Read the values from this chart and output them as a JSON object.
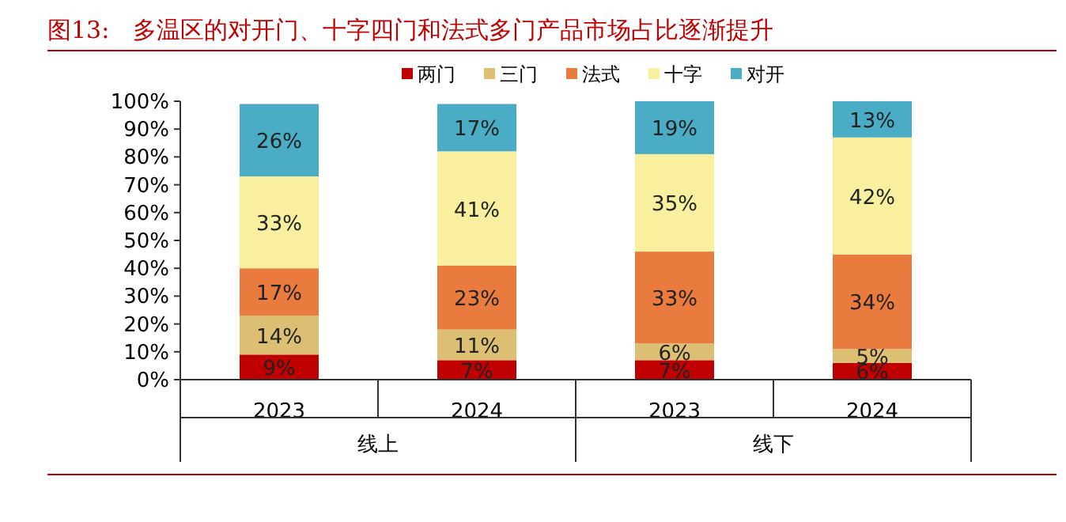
{
  "chart_data": {
    "type": "bar",
    "stacked": true,
    "title": "图13:　多温区的对开门、十字四门和法式多门产品市场占比逐渐提升",
    "categories": [
      "2023",
      "2024",
      "2023",
      "2024"
    ],
    "annotations": [
      "线上",
      "线下"
    ],
    "ylim": [
      0,
      100
    ],
    "yticks": [
      {
        "value": 0,
        "label": "0%"
      },
      {
        "value": 10,
        "label": "10%"
      },
      {
        "value": 20,
        "label": "20%"
      },
      {
        "value": 30,
        "label": "30%"
      },
      {
        "value": 40,
        "label": "40%"
      },
      {
        "value": 50,
        "label": "50%"
      },
      {
        "value": 60,
        "label": "60%"
      },
      {
        "value": 70,
        "label": "70%"
      },
      {
        "value": 80,
        "label": "80%"
      },
      {
        "value": 90,
        "label": "90%"
      },
      {
        "value": 100,
        "label": "100%"
      }
    ],
    "legend": "top",
    "grid": false,
    "series": [
      {
        "name": "两门",
        "color": "#c00000",
        "values": [
          9,
          7,
          7,
          6
        ],
        "value_labels": [
          "9%",
          "7%",
          "7%",
          "6%"
        ]
      },
      {
        "name": "三门",
        "color": "#dcbf72",
        "values": [
          14,
          11,
          6,
          5
        ],
        "value_labels": [
          "14%",
          "11%",
          "6%",
          "5%"
        ]
      },
      {
        "name": "法式",
        "color": "#ea7b3f",
        "values": [
          17,
          23,
          33,
          34
        ],
        "value_labels": [
          "17%",
          "23%",
          "33%",
          "34%"
        ]
      },
      {
        "name": "十字",
        "color": "#f8f09e",
        "values": [
          33,
          41,
          35,
          42
        ],
        "value_labels": [
          "33%",
          "41%",
          "35%",
          "42%"
        ]
      },
      {
        "name": "对开",
        "color": "#4bacc6",
        "values": [
          26,
          17,
          19,
          13
        ],
        "value_labels": [
          "26%",
          "17%",
          "19%",
          "13%"
        ]
      }
    ]
  }
}
